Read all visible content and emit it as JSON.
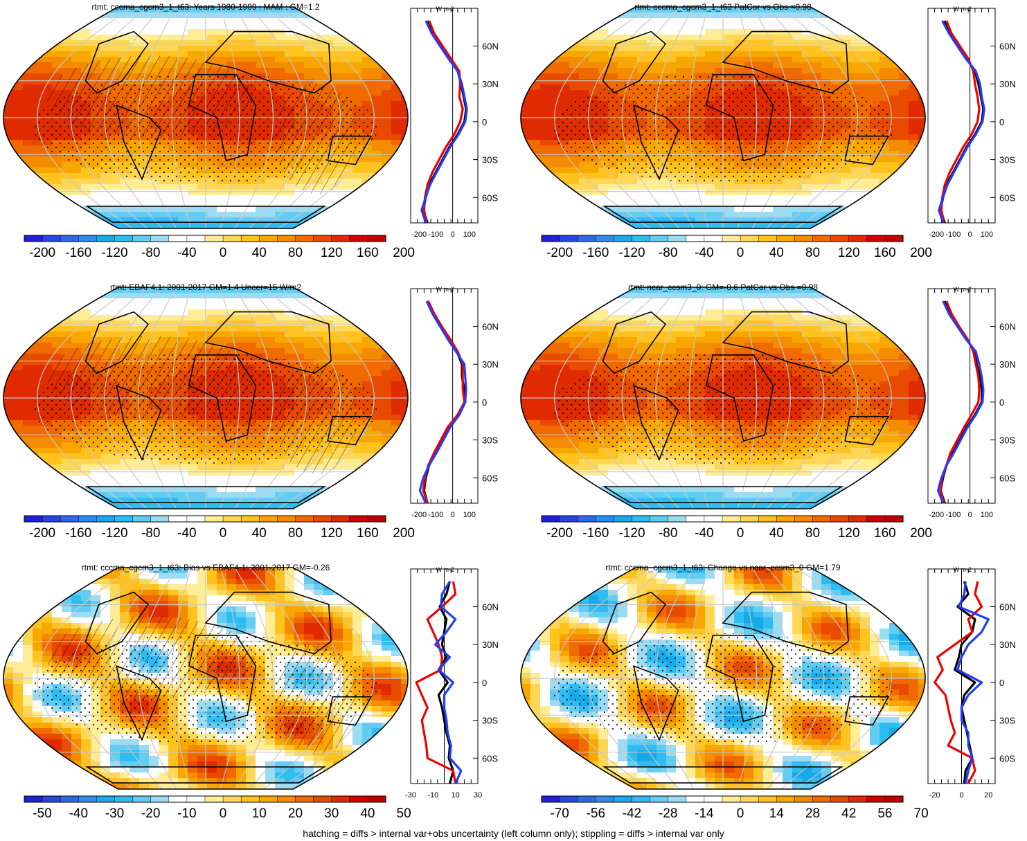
{
  "colors": {
    "scale": [
      "#1f1fd6",
      "#2a45e0",
      "#2f6ae6",
      "#2f8cec",
      "#1aa9e8",
      "#2fbcf0",
      "#63ccf2",
      "#9cdcf2",
      "#ffffff",
      "#ffffff",
      "#ffec96",
      "#ffd757",
      "#ffc21e",
      "#f7a700",
      "#f58c00",
      "#f06a00",
      "#e84a00",
      "#e02a00",
      "#d20000",
      "#c00000"
    ],
    "black": "#000000",
    "red": "#ee0000",
    "blue": "#1f3cff",
    "grid": "#c8c8c8"
  },
  "footer": "hatching = diffs > internal var+obs uncertainty (left column only); stippling = diffs > internal var only",
  "lat_ticks": [
    "60N",
    "30N",
    "0",
    "30S",
    "60S"
  ],
  "zonal_unit": "W m-2",
  "chart_data": [
    {
      "type": "heatmap",
      "panel": "model-climatology",
      "title": "rtmt: cccma_cgcm3_1_t63: Years 1980-1999 : MAM : GM=1.2",
      "colorbar_labels": [
        "-200",
        "-160",
        "-120",
        "-80",
        "-40",
        "0",
        "40",
        "80",
        "120",
        "160",
        "200"
      ],
      "zonal_xticks": [
        "-200",
        "-100",
        "0",
        "100"
      ],
      "zonal": {
        "lats": [
          80,
          70,
          60,
          50,
          40,
          30,
          20,
          10,
          0,
          -10,
          -20,
          -30,
          -40,
          -50,
          -60,
          -70,
          -80
        ],
        "series": [
          {
            "name": "model",
            "color": "black",
            "values": [
              -150,
              -120,
              -70,
              -20,
              30,
              50,
              65,
              80,
              70,
              30,
              -20,
              -60,
              -100,
              -140,
              -160,
              -175,
              -150
            ]
          },
          {
            "name": "obs-red",
            "color": "red",
            "values": [
              -140,
              -110,
              -60,
              -10,
              40,
              45,
              40,
              60,
              45,
              10,
              -40,
              -80,
              -120,
              -150,
              -165,
              -170,
              -155
            ]
          },
          {
            "name": "obs-blue",
            "color": "blue",
            "values": [
              -160,
              -125,
              -75,
              -25,
              30,
              55,
              70,
              85,
              75,
              35,
              -15,
              -55,
              -95,
              -135,
              -160,
              -185,
              -160
            ]
          }
        ]
      }
    },
    {
      "type": "heatmap",
      "panel": "model-patcor",
      "title": "rtmt: cccma_cgcm3_1_t63 PatCor vs Obs =0.98",
      "colorbar_labels": [
        "-200",
        "-160",
        "-120",
        "-80",
        "-40",
        "0",
        "40",
        "80",
        "120",
        "160",
        "200"
      ],
      "zonal_xticks": [
        "-200",
        "-100",
        "0",
        "100"
      ],
      "zonal": {
        "lats": [
          80,
          70,
          60,
          50,
          40,
          30,
          20,
          10,
          0,
          -10,
          -20,
          -30,
          -40,
          -50,
          -60,
          -70,
          -80
        ],
        "series": [
          {
            "name": "model",
            "color": "black",
            "values": [
              -150,
              -120,
              -70,
              -20,
              30,
              50,
              65,
              80,
              70,
              30,
              -20,
              -60,
              -100,
              -140,
              -160,
              -175,
              -150
            ]
          },
          {
            "name": "obs-red",
            "color": "red",
            "values": [
              -140,
              -110,
              -60,
              -10,
              20,
              30,
              45,
              55,
              45,
              10,
              -40,
              -80,
              -120,
              -150,
              -165,
              -170,
              -155
            ]
          },
          {
            "name": "obs-blue",
            "color": "blue",
            "values": [
              -165,
              -125,
              -75,
              -25,
              35,
              60,
              70,
              85,
              75,
              35,
              -15,
              -55,
              -95,
              -135,
              -160,
              -185,
              -160
            ]
          }
        ]
      }
    },
    {
      "type": "heatmap",
      "panel": "obs-climatology",
      "title": "rtmt: EBAF4.1: 2001-2017 GM=1.4 Uncer=15 W/m2",
      "colorbar_labels": [
        "-200",
        "-160",
        "-120",
        "-80",
        "-40",
        "0",
        "40",
        "80",
        "120",
        "160",
        "200"
      ],
      "zonal_xticks": [
        "-200",
        "-100",
        "0",
        "100"
      ],
      "zonal": {
        "lats": [
          80,
          70,
          60,
          50,
          40,
          30,
          20,
          10,
          0,
          -10,
          -20,
          -30,
          -40,
          -50,
          -60,
          -70,
          -80
        ],
        "series": [
          {
            "name": "model",
            "color": "black",
            "values": [
              -150,
              -115,
              -70,
              -25,
              25,
              55,
              55,
              70,
              75,
              40,
              -20,
              -60,
              -100,
              -140,
              -160,
              -170,
              -150
            ]
          },
          {
            "name": "obs-red",
            "color": "red",
            "values": [
              -145,
              -110,
              -65,
              -15,
              30,
              60,
              60,
              60,
              70,
              30,
              -30,
              -70,
              -110,
              -145,
              -165,
              -175,
              -150
            ]
          },
          {
            "name": "obs-blue",
            "color": "blue",
            "values": [
              -155,
              -120,
              -75,
              -30,
              20,
              70,
              75,
              80,
              75,
              40,
              -15,
              -55,
              -95,
              -140,
              -175,
              -195,
              -160
            ]
          }
        ]
      }
    },
    {
      "type": "heatmap",
      "panel": "ref-model-climatology",
      "title": "rtmt: ncar_ccsm3_0: GM=-0.6 PatCor vs Obs =0.98",
      "colorbar_labels": [
        "-200",
        "-160",
        "-120",
        "-80",
        "-40",
        "0",
        "40",
        "80",
        "120",
        "160",
        "200"
      ],
      "zonal_xticks": [
        "-200",
        "-100",
        "0",
        "100"
      ],
      "zonal": {
        "lats": [
          80,
          70,
          60,
          50,
          40,
          30,
          20,
          10,
          0,
          -10,
          -20,
          -30,
          -40,
          -50,
          -60,
          -70,
          -80
        ],
        "series": [
          {
            "name": "model",
            "color": "black",
            "values": [
              -150,
              -120,
              -70,
              -20,
              30,
              40,
              60,
              70,
              70,
              30,
              -20,
              -60,
              -100,
              -140,
              -160,
              -175,
              -150
            ]
          },
          {
            "name": "obs-red",
            "color": "red",
            "values": [
              -140,
              -110,
              -65,
              -15,
              20,
              35,
              50,
              55,
              50,
              10,
              -35,
              -75,
              -115,
              -140,
              -165,
              -175,
              -155
            ]
          },
          {
            "name": "obs-blue",
            "color": "blue",
            "values": [
              -160,
              -125,
              -75,
              -25,
              35,
              55,
              70,
              80,
              75,
              35,
              -15,
              -55,
              -95,
              -140,
              -170,
              -190,
              -160
            ]
          }
        ]
      }
    },
    {
      "type": "heatmap",
      "panel": "bias",
      "title": "rtmt: cccma_cgcm3_1_t63: Bias vs EBAF4.1: 2001-2017 GM=-0.26",
      "colorbar_labels": [
        "-50",
        "-40",
        "-30",
        "-20",
        "-10",
        "0",
        "10",
        "20",
        "30",
        "40",
        "50"
      ],
      "zonal_xticks": [
        "-30",
        "-10",
        "10",
        "30"
      ],
      "zonal": {
        "lats": [
          80,
          70,
          60,
          50,
          40,
          30,
          20,
          10,
          0,
          -10,
          -20,
          -30,
          -40,
          -50,
          -60,
          -70,
          -80
        ],
        "series": [
          {
            "name": "model",
            "color": "black",
            "values": [
              5,
              2,
              -4,
              2,
              0,
              -2,
              2,
              -5,
              3,
              -5,
              -2,
              0,
              2,
              5,
              4,
              8,
              5
            ]
          },
          {
            "name": "obs-red",
            "color": "red",
            "values": [
              8,
              10,
              -2,
              -15,
              -10,
              -5,
              -2,
              -3,
              -25,
              -20,
              -15,
              -20,
              -18,
              -16,
              -15,
              8,
              10
            ]
          },
          {
            "name": "obs-blue",
            "color": "blue",
            "values": [
              5,
              -2,
              -3,
              10,
              2,
              -8,
              5,
              -5,
              8,
              0,
              0,
              2,
              3,
              6,
              5,
              15,
              10
            ]
          }
        ]
      }
    },
    {
      "type": "heatmap",
      "panel": "change",
      "title": "rtmt: cccma_cgcm3_1_t63: Change vs ncar_ccsm3_0 GM=1.79",
      "colorbar_labels": [
        "-70",
        "-56",
        "-42",
        "-28",
        "-14",
        "0",
        "14",
        "28",
        "42",
        "56",
        "70"
      ],
      "zonal_xticks": [
        "-20",
        "0",
        "20"
      ],
      "zonal": {
        "lats": [
          80,
          70,
          60,
          50,
          40,
          30,
          20,
          10,
          0,
          -10,
          -20,
          -30,
          -40,
          -50,
          -60,
          -70,
          -80
        ],
        "series": [
          {
            "name": "model",
            "color": "black",
            "values": [
              2,
              5,
              -3,
              10,
              8,
              0,
              -2,
              -5,
              10,
              2,
              0,
              2,
              4,
              6,
              8,
              3,
              2
            ]
          },
          {
            "name": "obs-red",
            "color": "red",
            "values": [
              12,
              10,
              15,
              5,
              8,
              -5,
              -18,
              -14,
              -20,
              -12,
              -10,
              -8,
              -5,
              -10,
              8,
              10,
              5
            ]
          },
          {
            "name": "obs-blue",
            "color": "blue",
            "values": [
              3,
              2,
              -2,
              20,
              15,
              5,
              0,
              -3,
              15,
              5,
              0,
              0,
              5,
              5,
              8,
              5,
              3
            ]
          }
        ]
      }
    }
  ]
}
